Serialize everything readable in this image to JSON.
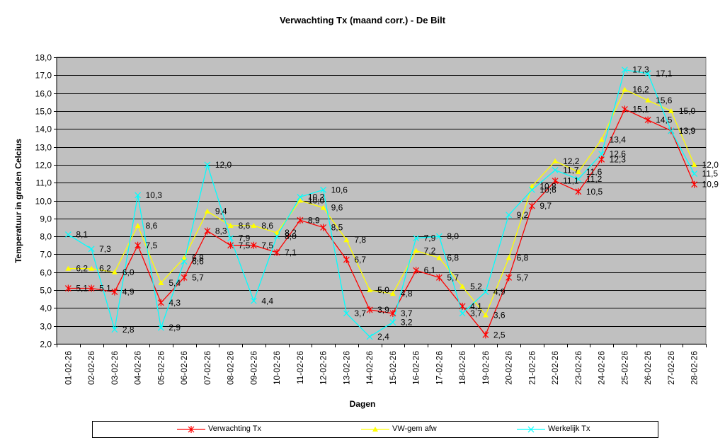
{
  "chart_data": {
    "type": "line",
    "title": "Verwachting Tx (maand corr.) - De Bilt",
    "xlabel": "Dagen",
    "ylabel": "Temperatuur in graden Celcius",
    "ylim": [
      2.0,
      18.0
    ],
    "ytick_step": 1.0,
    "grid": true,
    "legend_position": "bottom",
    "background_color": "#c0c0c0",
    "categories": [
      "01-02-26",
      "02-02-26",
      "03-02-26",
      "04-02-26",
      "05-02-26",
      "06-02-26",
      "07-02-26",
      "08-02-26",
      "09-02-26",
      "10-02-26",
      "11-02-26",
      "12-02-26",
      "13-02-26",
      "14-02-26",
      "15-02-26",
      "16-02-26",
      "17-02-26",
      "18-02-26",
      "19-02-26",
      "20-02-26",
      "21-02-26",
      "22-02-26",
      "23-02-26",
      "24-02-26",
      "25-02-26",
      "26-02-26",
      "27-02-26",
      "28-02-26"
    ],
    "series": [
      {
        "name": "Verwachting Tx",
        "color": "#ff0000",
        "marker": "star",
        "values": [
          5.1,
          5.1,
          4.9,
          7.5,
          4.3,
          5.7,
          8.3,
          7.5,
          7.5,
          7.1,
          8.9,
          8.5,
          6.7,
          3.9,
          3.7,
          6.1,
          5.7,
          4.1,
          2.5,
          5.7,
          9.7,
          11.1,
          10.5,
          12.3,
          15.1,
          14.5,
          13.9,
          10.9
        ]
      },
      {
        "name": "VW-gem afw",
        "color": "#ffff00",
        "marker": "triangle",
        "values": [
          6.2,
          6.2,
          6.0,
          8.6,
          5.4,
          6.8,
          9.4,
          8.6,
          8.6,
          8.2,
          10.0,
          9.6,
          7.8,
          5.0,
          4.8,
          7.2,
          6.8,
          5.2,
          3.6,
          6.8,
          10.8,
          12.2,
          11.6,
          13.4,
          16.2,
          15.6,
          15.0,
          12.0
        ]
      },
      {
        "name": "Werkelijk Tx",
        "color": "#00ffff",
        "marker": "x",
        "values": [
          8.1,
          7.3,
          2.8,
          10.3,
          2.9,
          6.6,
          12.0,
          7.9,
          4.4,
          8.0,
          10.2,
          10.6,
          3.7,
          2.4,
          3.2,
          7.9,
          8.0,
          3.7,
          4.9,
          9.2,
          10.6,
          11.7,
          11.2,
          12.6,
          17.3,
          17.1,
          13.9,
          11.5
        ]
      }
    ]
  }
}
